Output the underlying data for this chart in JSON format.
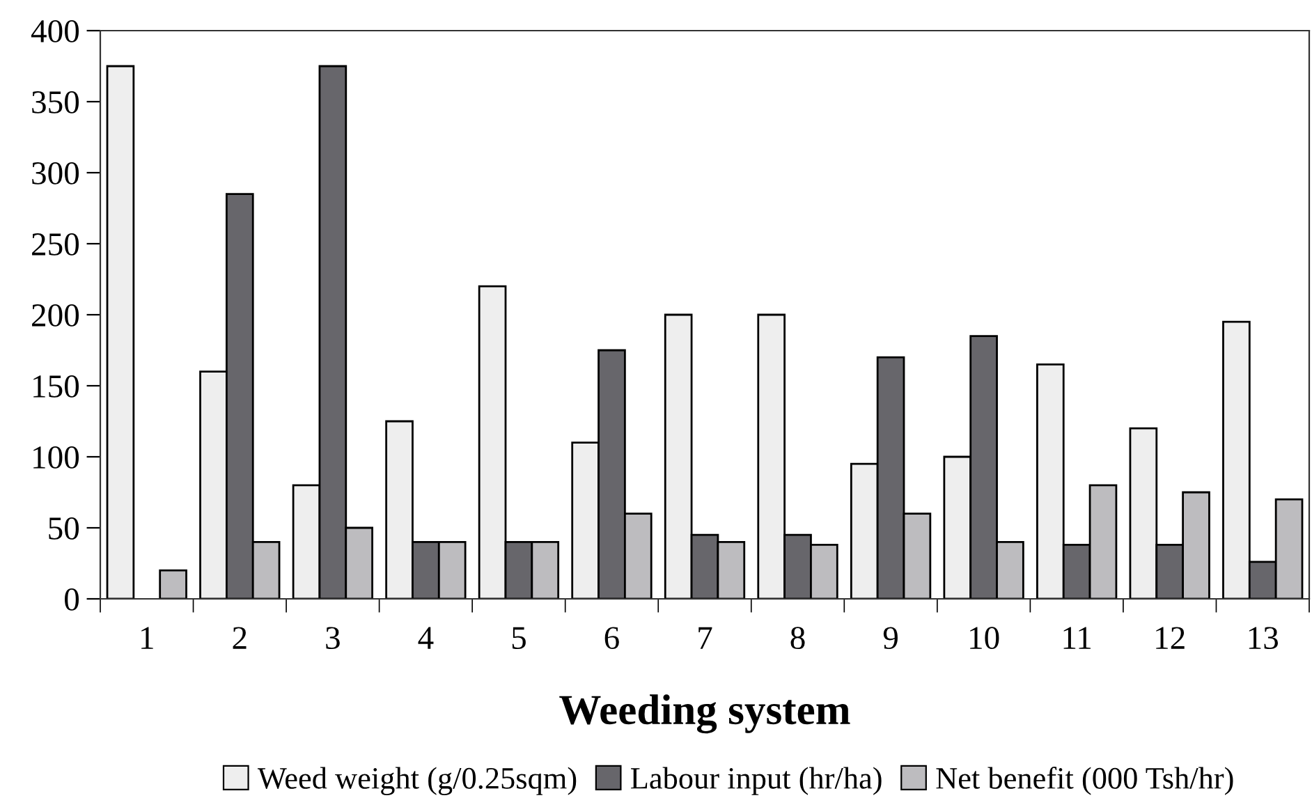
{
  "chart_data": {
    "type": "bar",
    "xlabel": "Weeding system",
    "categories": [
      "1",
      "2",
      "3",
      "4",
      "5",
      "6",
      "7",
      "8",
      "9",
      "10",
      "11",
      "12",
      "13"
    ],
    "series": [
      {
        "name": "Weed weight (g/0.25sqm)",
        "color": "#eeeeee",
        "values": [
          375,
          160,
          80,
          125,
          220,
          110,
          200,
          200,
          95,
          100,
          165,
          120,
          195
        ]
      },
      {
        "name": "Labour input (hr/ha)",
        "color": "#67666b",
        "values": [
          null,
          285,
          375,
          40,
          40,
          175,
          45,
          45,
          170,
          185,
          38,
          38,
          26
        ]
      },
      {
        "name": "Net benefit (000 Tsh/hr)",
        "color": "#bdbcbf",
        "values": [
          20,
          40,
          50,
          40,
          40,
          60,
          40,
          38,
          60,
          40,
          80,
          75,
          70
        ]
      }
    ],
    "ylim": [
      0,
      400
    ],
    "yticks": [
      0,
      50,
      100,
      150,
      200,
      250,
      300,
      350,
      400
    ],
    "grid": false,
    "legend": "bottom"
  }
}
